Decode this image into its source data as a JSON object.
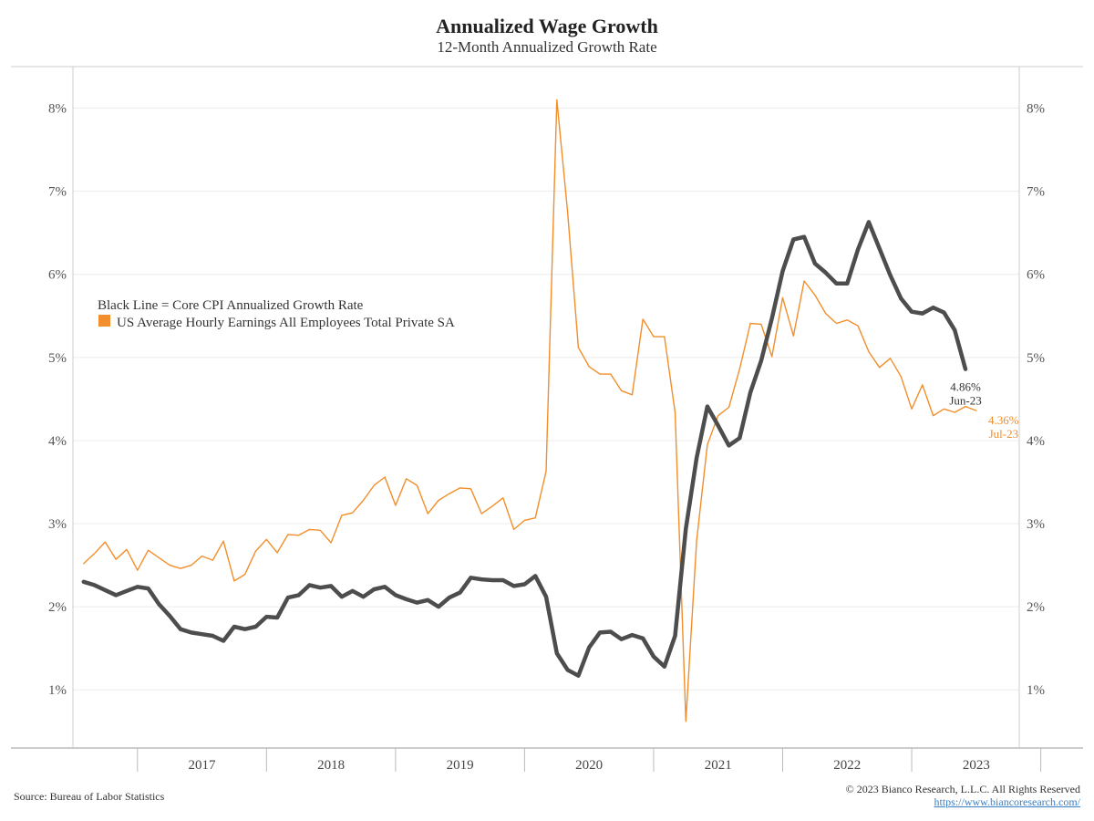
{
  "header": {
    "title": "Annualized Wage Growth",
    "subtitle": "12-Month Annualized Growth Rate"
  },
  "footer": {
    "source": "Source: Bureau of Labor Statistics",
    "copyright": "© 2023 Bianco Research, L.L.C. All Rights Reserved",
    "url": "https://www.biancoresearch.com/"
  },
  "colors": {
    "core_cpi": "#4d4d4d",
    "earnings": "#f28e2b",
    "grid": "#ececec",
    "axis": "#cccccc"
  },
  "chart_data": {
    "type": "line",
    "title": "Annualized Wage Growth",
    "subtitle": "12-Month Annualized Growth Rate",
    "xlabel": "",
    "ylabel": "",
    "ylim": [
      0.3,
      8.5
    ],
    "xlim": [
      "2016-07",
      "2023-11"
    ],
    "yticks": [
      "1%",
      "2%",
      "3%",
      "4%",
      "5%",
      "6%",
      "7%",
      "8%"
    ],
    "ytick_values": [
      1,
      2,
      3,
      4,
      5,
      6,
      7,
      8
    ],
    "xticks": [
      "2017",
      "2018",
      "2019",
      "2020",
      "2021",
      "2022",
      "2023"
    ],
    "grid": true,
    "legend": {
      "placement": "upper-left",
      "entries": [
        "Black Line = Core CPI Annualized Growth Rate",
        "US Average Hourly Earnings All Employees Total Private SA"
      ]
    },
    "series": [
      {
        "key": "core_cpi",
        "start": "2016-08",
        "values": [
          2.3,
          2.26,
          2.2,
          2.14,
          2.19,
          2.24,
          2.22,
          2.03,
          1.89,
          1.73,
          1.69,
          1.67,
          1.65,
          1.59,
          1.76,
          1.73,
          1.76,
          1.88,
          1.87,
          2.11,
          2.14,
          2.26,
          2.23,
          2.25,
          2.12,
          2.19,
          2.12,
          2.21,
          2.24,
          2.14,
          2.09,
          2.05,
          2.08,
          2.0,
          2.11,
          2.17,
          2.35,
          2.33,
          2.32,
          2.32,
          2.25,
          2.27,
          2.37,
          2.12,
          1.44,
          1.24,
          1.17,
          1.51,
          1.69,
          1.7,
          1.61,
          1.66,
          1.62,
          1.4,
          1.28,
          1.65,
          2.94,
          3.79,
          4.41,
          4.18,
          3.94,
          4.03,
          4.58,
          4.96,
          5.47,
          6.04,
          6.42,
          6.45,
          6.13,
          6.02,
          5.89,
          5.89,
          6.3,
          6.63,
          6.31,
          5.99,
          5.71,
          5.55,
          5.53,
          5.6,
          5.54,
          5.33,
          4.86
        ]
      },
      {
        "key": "earnings",
        "start": "2016-08",
        "values": [
          2.52,
          2.64,
          2.78,
          2.57,
          2.69,
          2.44,
          2.68,
          2.59,
          2.5,
          2.46,
          2.5,
          2.61,
          2.56,
          2.79,
          2.31,
          2.39,
          2.67,
          2.81,
          2.65,
          2.87,
          2.86,
          2.93,
          2.92,
          2.77,
          3.1,
          3.13,
          3.28,
          3.46,
          3.56,
          3.22,
          3.54,
          3.46,
          3.12,
          3.28,
          3.36,
          3.43,
          3.42,
          3.12,
          3.21,
          3.31,
          2.93,
          3.04,
          3.07,
          3.63,
          8.1,
          6.75,
          5.12,
          4.89,
          4.8,
          4.8,
          4.6,
          4.55,
          5.46,
          5.25,
          5.25,
          4.34,
          0.62,
          2.79,
          3.95,
          4.3,
          4.4,
          4.86,
          5.41,
          5.4,
          5.01,
          5.72,
          5.26,
          5.92,
          5.75,
          5.53,
          5.41,
          5.45,
          5.38,
          5.07,
          4.88,
          4.99,
          4.77,
          4.38,
          4.67,
          4.3,
          4.38,
          4.34,
          4.41,
          4.36
        ]
      }
    ],
    "annotations": [
      {
        "series": "core_cpi",
        "value": "4.86%",
        "date": "Jun-23"
      },
      {
        "series": "earnings",
        "value": "4.36%",
        "date": "Jul-23"
      }
    ]
  }
}
